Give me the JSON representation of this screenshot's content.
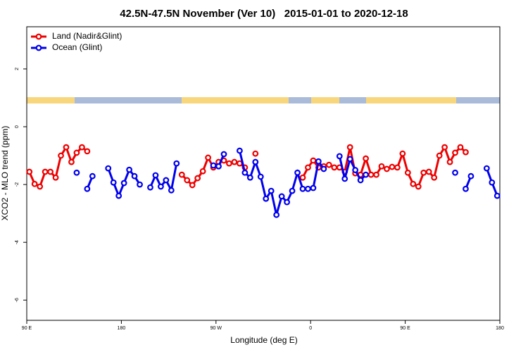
{
  "chart_data": {
    "type": "line",
    "title": "42.5N-47.5N November (Ver 10)   2015-01-01 to 2020-12-18",
    "xlabel": "Longitude (deg E)",
    "ylabel": "XCO2 - MLO trend (ppm)",
    "xlim": [
      -270,
      180
    ],
    "xticks": [
      {
        "value": -270,
        "label": "90 E"
      },
      {
        "value": -180,
        "label": "180"
      },
      {
        "value": -90,
        "label": "90 W"
      },
      0,
      {
        "value": 90,
        "label": "90 E"
      },
      180
    ],
    "ylim": [
      -6.7,
      3.46
    ],
    "yticks": [
      -6,
      -4,
      -2,
      0,
      2
    ],
    "legend": "top-left",
    "x": [
      -267.5,
      -262.5,
      -257.5,
      -252.5,
      -247.5,
      -242.5,
      -237.5,
      -232.5,
      -227.5,
      -222.5,
      -217.5,
      -212.5,
      -207.5,
      -202.5,
      -197.5,
      -192.5,
      -187.5,
      -182.5,
      -177.5,
      -172.5,
      -167.5,
      -162.5,
      -157.5,
      -152.5,
      -147.5,
      -142.5,
      -137.5,
      -132.5,
      -127.5,
      -122.5,
      -117.5,
      -112.5,
      -107.5,
      -102.5,
      -97.5,
      -92.5,
      -87.5,
      -82.5,
      -77.5,
      -72.5,
      -67.5,
      -62.5,
      -57.5,
      -52.5,
      -47.5,
      -42.5,
      -37.5,
      -32.5,
      -27.5,
      -22.5,
      -17.5,
      -12.5,
      -7.5,
      -2.5,
      2.5,
      7.5,
      12.5,
      17.5,
      22.5,
      27.5,
      32.5,
      37.5,
      42.5,
      47.5,
      52.5,
      57.5,
      62.5,
      67.5,
      72.5,
      77.5,
      82.5,
      87.5,
      92.5,
      97.5,
      102.5,
      107.5,
      112.5,
      117.5,
      122.5,
      127.5,
      132.5,
      137.5,
      142.5,
      147.5,
      152.5,
      157.5,
      162.5,
      167.5,
      172.5,
      177.5
    ],
    "series": [
      {
        "name": "Land (Nadir&Glint)",
        "color": "#ee0000",
        "values": [
          -1.56,
          -1.98,
          -2.07,
          -1.56,
          -1.56,
          -1.76,
          -1.0,
          -0.71,
          -1.22,
          -0.9,
          -0.71,
          -0.85,
          null,
          null,
          null,
          null,
          null,
          null,
          null,
          null,
          null,
          null,
          null,
          null,
          null,
          null,
          null,
          null,
          null,
          -1.66,
          -1.85,
          -2.02,
          -1.78,
          -1.54,
          -1.07,
          -1.41,
          -1.22,
          -1.17,
          -1.27,
          -1.22,
          -1.27,
          -1.41,
          null,
          -0.93,
          null,
          null,
          null,
          null,
          null,
          null,
          null,
          null,
          -1.76,
          -1.41,
          -1.17,
          -1.41,
          -1.37,
          -1.32,
          -1.41,
          -1.41,
          -1.56,
          -0.71,
          -1.61,
          -1.66,
          -1.1,
          -1.66,
          -1.66,
          -1.37,
          -1.46,
          -1.39,
          -1.41,
          -0.93,
          -1.59,
          -1.98,
          -2.07,
          -1.59,
          -1.56,
          -1.76,
          -1.0,
          -0.71,
          -1.22,
          -0.9,
          -0.71,
          -0.88,
          null,
          null,
          null,
          null,
          null,
          null
        ]
      },
      {
        "name": "Ocean (Glint)",
        "color": "#0000ee",
        "values": [
          null,
          null,
          null,
          null,
          null,
          null,
          null,
          null,
          null,
          -1.59,
          null,
          -2.15,
          -1.71,
          null,
          null,
          -1.44,
          -1.93,
          -2.39,
          -1.95,
          -1.49,
          -1.71,
          -2.0,
          null,
          -2.1,
          -1.68,
          -2.07,
          -1.85,
          -2.2,
          -1.27,
          null,
          null,
          null,
          null,
          null,
          null,
          -1.34,
          -1.37,
          -0.95,
          null,
          null,
          -0.83,
          -1.59,
          -1.76,
          -1.22,
          -1.73,
          -2.49,
          -2.22,
          -3.05,
          -2.41,
          -2.61,
          -2.22,
          -1.59,
          -2.15,
          -2.15,
          -2.12,
          -1.2,
          -1.46,
          null,
          null,
          -1.02,
          -1.8,
          -1.12,
          -1.5,
          -1.85,
          -1.66,
          null,
          null,
          null,
          null,
          null,
          null,
          null,
          null,
          null,
          null,
          null,
          null,
          null,
          null,
          null,
          null,
          -1.59,
          null,
          -2.15,
          -1.71,
          null,
          null,
          -1.44,
          -1.93,
          -2.39
        ]
      }
    ]
  }
}
